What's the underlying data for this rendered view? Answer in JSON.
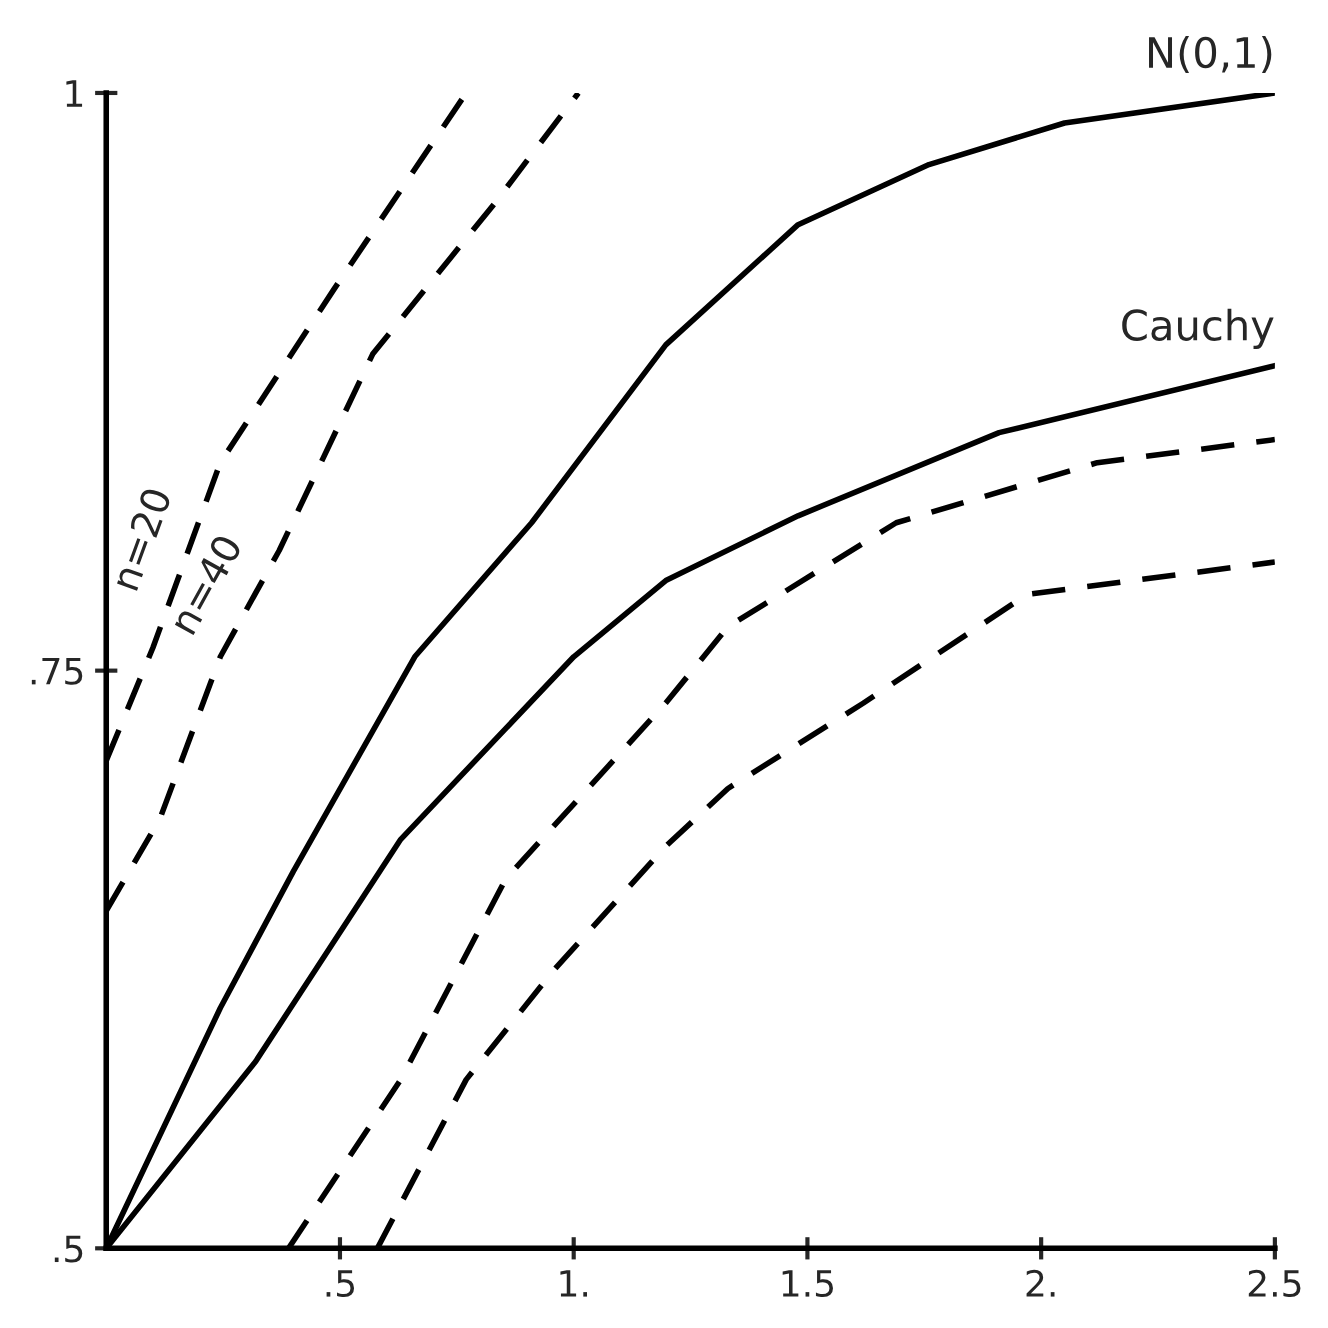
{
  "chart_data": {
    "type": "line",
    "xlim": [
      0,
      2.5
    ],
    "ylim": [
      0.5,
      1
    ],
    "xticks": [
      {
        "value": 0.5,
        "label": ".5"
      },
      {
        "value": 1,
        "label": "1."
      },
      {
        "value": 1.5,
        "label": "1.5"
      },
      {
        "value": 2,
        "label": "2."
      },
      {
        "value": 2.5,
        "label": "2.5"
      }
    ],
    "yticks": [
      {
        "value": 0.5,
        "label": ".5"
      },
      {
        "value": 0.75,
        "label": ".75"
      },
      {
        "value": 1,
        "label": "1"
      }
    ],
    "marker": "none",
    "series": [
      {
        "name": "N(0,1)",
        "color": "#000000",
        "line_style": "solid",
        "x": [
          0,
          0.244,
          0.4,
          0.66,
          0.91,
          1.197,
          1.48,
          1.76,
          2.05,
          2.5
        ],
        "values": [
          0.5,
          0.604,
          0.663,
          0.756,
          0.814,
          0.891,
          0.943,
          0.969,
          0.987,
          1.0
        ]
      },
      {
        "name": "Cauchy",
        "color": "#000000",
        "line_style": "solid",
        "x": [
          0,
          0.32,
          0.63,
          1.0,
          1.197,
          1.48,
          1.91,
          2.5
        ],
        "values": [
          0.5,
          0.581,
          0.677,
          0.756,
          0.789,
          0.817,
          0.853,
          0.882
        ]
      },
      {
        "name": "n=20",
        "color": "#000000",
        "line_style": "dashed",
        "x": [
          0,
          0.1,
          0.244,
          0.487,
          0.77
        ],
        "values": [
          0.711,
          0.76,
          0.84,
          0.915,
          1.0
        ]
      },
      {
        "name": "n=40",
        "color": "#000000",
        "line_style": "dashed",
        "x": [
          0,
          0.115,
          0.244,
          0.37,
          0.57,
          0.83,
          1.01
        ],
        "values": [
          0.646,
          0.686,
          0.756,
          0.802,
          0.887,
          0.952,
          1.0
        ]
      },
      {
        "color": "#000000",
        "line_style": "dashed",
        "x": [
          0.39,
          0.63,
          0.855,
          1.197,
          1.33,
          1.69,
          2.12,
          2.5
        ],
        "values": [
          0.5,
          0.573,
          0.66,
          0.736,
          0.769,
          0.814,
          0.84,
          0.85
        ]
      },
      {
        "color": "#000000",
        "line_style": "dashed",
        "x": [
          0.58,
          0.77,
          0.96,
          1.197,
          1.33,
          1.62,
          1.97,
          2.5
        ],
        "values": [
          0.5,
          0.573,
          0.621,
          0.674,
          0.699,
          0.736,
          0.783,
          0.797
        ]
      }
    ]
  }
}
